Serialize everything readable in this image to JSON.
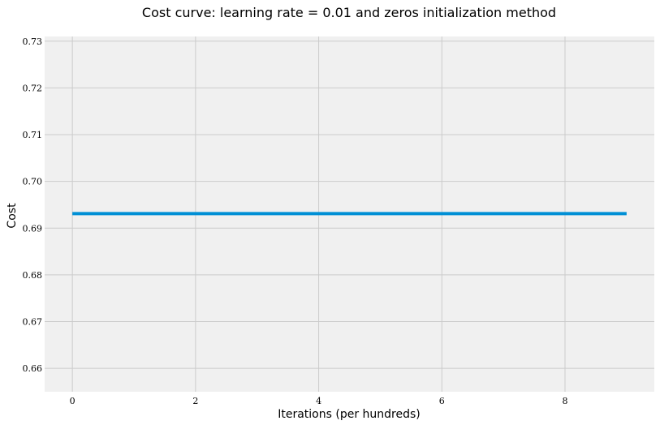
{
  "chart_data": {
    "type": "line",
    "title": "Cost curve: learning rate = 0.01 and zeros initialization method",
    "xlabel": "Iterations (per hundreds)",
    "ylabel": "Cost",
    "xlim": [
      -0.45,
      9.45
    ],
    "ylim": [
      0.655,
      0.731
    ],
    "xticks": [
      0,
      2,
      4,
      6,
      8
    ],
    "yticks": [
      0.66,
      0.67,
      0.68,
      0.69,
      0.7,
      0.71,
      0.72,
      0.73
    ],
    "xtick_labels": [
      "0",
      "2",
      "4",
      "6",
      "8"
    ],
    "ytick_labels": [
      "0.66",
      "0.67",
      "0.68",
      "0.69",
      "0.70",
      "0.71",
      "0.72",
      "0.73"
    ],
    "grid": true,
    "series": [
      {
        "color": "#008fd5",
        "x": [
          0,
          1,
          2,
          3,
          4,
          5,
          6,
          7,
          8,
          9
        ],
        "y": [
          0.6931,
          0.6931,
          0.6931,
          0.6931,
          0.6931,
          0.6931,
          0.6931,
          0.6931,
          0.6931,
          0.6931
        ]
      }
    ],
    "background_color": "#f0f0f0",
    "grid_color": "#cbcbcb"
  }
}
